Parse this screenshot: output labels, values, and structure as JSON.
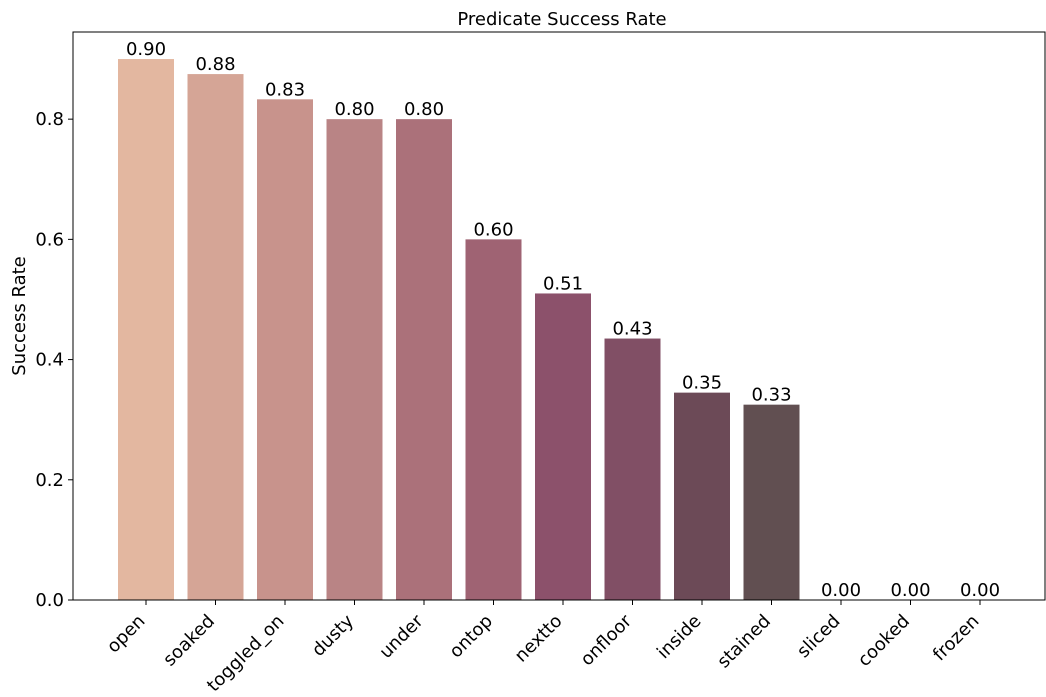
{
  "chart_data": {
    "type": "bar",
    "title": "Predicate Success Rate",
    "xlabel": "",
    "ylabel": "Success Rate",
    "categories": [
      "open",
      "soaked",
      "toggled_on",
      "dusty",
      "under",
      "ontop",
      "nextto",
      "onfloor",
      "inside",
      "stained",
      "sliced",
      "cooked",
      "frozen"
    ],
    "values": [
      0.9,
      0.875,
      0.833,
      0.8,
      0.8,
      0.6,
      0.51,
      0.435,
      0.345,
      0.325,
      0.0,
      0.0,
      0.0
    ],
    "data_labels": [
      "0.90",
      "0.88",
      "0.83",
      "0.80",
      "0.80",
      "0.60",
      "0.51",
      "0.43",
      "0.35",
      "0.33",
      "0.00",
      "0.00",
      "0.00"
    ],
    "colors": [
      "#e3b7a0",
      "#d5a596",
      "#c8938c",
      "#b98485",
      "#ab717a",
      "#9f6373",
      "#8c516b",
      "#814f65",
      "#6c4a57",
      "#614f51",
      "#5a4a4a",
      "#5a4a4a",
      "#5a4a4a"
    ],
    "yticks": [
      0.0,
      0.2,
      0.4,
      0.6,
      0.8
    ],
    "ytick_labels": [
      "0.0",
      "0.2",
      "0.4",
      "0.6",
      "0.8"
    ],
    "ylim": [
      0,
      0.945
    ],
    "grid": false,
    "legend": "none"
  }
}
